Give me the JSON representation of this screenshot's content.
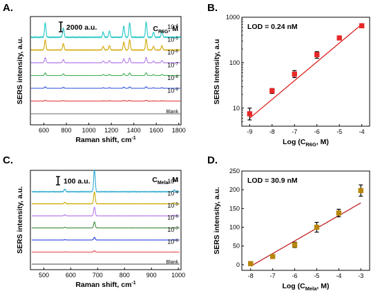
{
  "panels": {
    "A": {
      "letter": "A."
    },
    "B": {
      "letter": "B."
    },
    "C": {
      "letter": "C."
    },
    "D": {
      "letter": "D."
    }
  },
  "chart_data": [
    {
      "panel": "A",
      "type": "line",
      "xlabel": "Raman shift, cm",
      "xlabel_sup": "-1",
      "ylabel": "SERS intensity, a.u.",
      "xlim": [
        480,
        1820
      ],
      "xticks": [
        600,
        800,
        1000,
        1200,
        1400,
        1600,
        1800
      ],
      "scale_bar": "2000 a.u.",
      "legend_title_main": "C",
      "legend_title_sub": "R6G",
      "legend_title_unit": ", M",
      "peaks": [
        612,
        773,
        1128,
        1183,
        1311,
        1363,
        1510,
        1575,
        1650
      ],
      "peak_weights": [
        0.7,
        0.45,
        0.25,
        0.3,
        0.55,
        0.7,
        0.75,
        0.25,
        0.3
      ],
      "series": [
        {
          "name": "10",
          "exp": "-4",
          "color": "#1fc6c6",
          "amplitude": 1.0
        },
        {
          "name": "10",
          "exp": "-5",
          "color": "#d4a500",
          "amplitude": 0.7
        },
        {
          "name": "10",
          "exp": "-6",
          "color": "#b57be8",
          "amplitude": 0.35
        },
        {
          "name": "10",
          "exp": "-7",
          "color": "#3fae4f",
          "amplitude": 0.18
        },
        {
          "name": "10",
          "exp": "-8",
          "color": "#2f4fd8",
          "amplitude": 0.1
        },
        {
          "name": "10",
          "exp": "-9",
          "color": "#e03030",
          "amplitude": 0.05
        },
        {
          "name": "Blank",
          "exp": "",
          "color": "#666666",
          "amplitude": 0.0
        }
      ]
    },
    {
      "panel": "B",
      "type": "scatter",
      "annotation": "LOD = 0.24 nM",
      "xlabel_main": "Log (C",
      "xlabel_sub": "R6G",
      "xlabel_end": ", M)",
      "ylabel": "SERS Intensity, a.u",
      "yscale": "log",
      "xlim": [
        -9.35,
        -3.65
      ],
      "ylim": [
        4,
        1000
      ],
      "xticks": [
        -9,
        -8,
        -7,
        -6,
        -5,
        -4
      ],
      "yticks": [
        10,
        100,
        1000
      ],
      "x": [
        -9,
        -8,
        -7,
        -6,
        -5,
        -4
      ],
      "y": [
        7.5,
        24,
        56,
        150,
        350,
        650
      ],
      "err_low": [
        5.5,
        21,
        47,
        125,
        320,
        620
      ],
      "err_high": [
        10,
        27,
        67,
        175,
        385,
        700
      ],
      "fit": {
        "x": [
          -9.0,
          -4.0
        ],
        "y": [
          6.0,
          700
        ]
      },
      "point_color": "#e82828",
      "line_color": "#dd2222"
    },
    {
      "panel": "C",
      "type": "line",
      "xlabel": "Raman shift, cm",
      "xlabel_sup": "-1",
      "ylabel": "SERS intensity, a.u.",
      "xlim": [
        450,
        1010
      ],
      "xticks": [
        500,
        600,
        700,
        800,
        900,
        1000
      ],
      "scale_bar": "100 a.u.",
      "legend_title_main": "C",
      "legend_title_sub": "Mela",
      "legend_title_unit": ", M",
      "peaks": [
        578,
        688,
        985
      ],
      "peak_weights": [
        0.12,
        1.0,
        0.08
      ],
      "series": [
        {
          "name": "10",
          "exp": "-3",
          "color": "#2aa9cf",
          "amplitude": 1.0
        },
        {
          "name": "10",
          "exp": "-4",
          "color": "#c9aa00",
          "amplitude": 0.55
        },
        {
          "name": "10",
          "exp": "-5",
          "color": "#b57be8",
          "amplitude": 0.4
        },
        {
          "name": "10",
          "exp": "-6",
          "color": "#3d8c3d",
          "amplitude": 0.28
        },
        {
          "name": "10",
          "exp": "-7",
          "color": "#1f38d8",
          "amplitude": 0.12
        },
        {
          "name": "10",
          "exp": "-8",
          "color": "#e04040",
          "amplitude": 0.06
        },
        {
          "name": "Blank",
          "exp": "",
          "color": "#444444",
          "amplitude": 0.0
        }
      ]
    },
    {
      "panel": "D",
      "type": "scatter",
      "annotation": "LOD = 30.9 nM",
      "xlabel_main": "Log (C",
      "xlabel_sub": "Mela",
      "xlabel_end": ", M)",
      "ylabel": "SERS intensity, a.u.",
      "xlim": [
        -8.4,
        -2.6
      ],
      "ylim": [
        -15,
        250
      ],
      "xticks": [
        -8,
        -7,
        -6,
        -5,
        -4,
        -3
      ],
      "yticks": [
        0,
        50,
        100,
        150,
        200,
        250
      ],
      "x": [
        -8,
        -7,
        -6,
        -5,
        -4,
        -3
      ],
      "y": [
        3,
        22,
        53,
        100,
        138,
        198
      ],
      "err": [
        4,
        5,
        7,
        13,
        10,
        15
      ],
      "fit": {
        "x": [
          -8.0,
          -3.0
        ],
        "y": [
          -4,
          165
        ]
      },
      "point_color": "#b8860b",
      "line_color": "#c02020"
    }
  ]
}
